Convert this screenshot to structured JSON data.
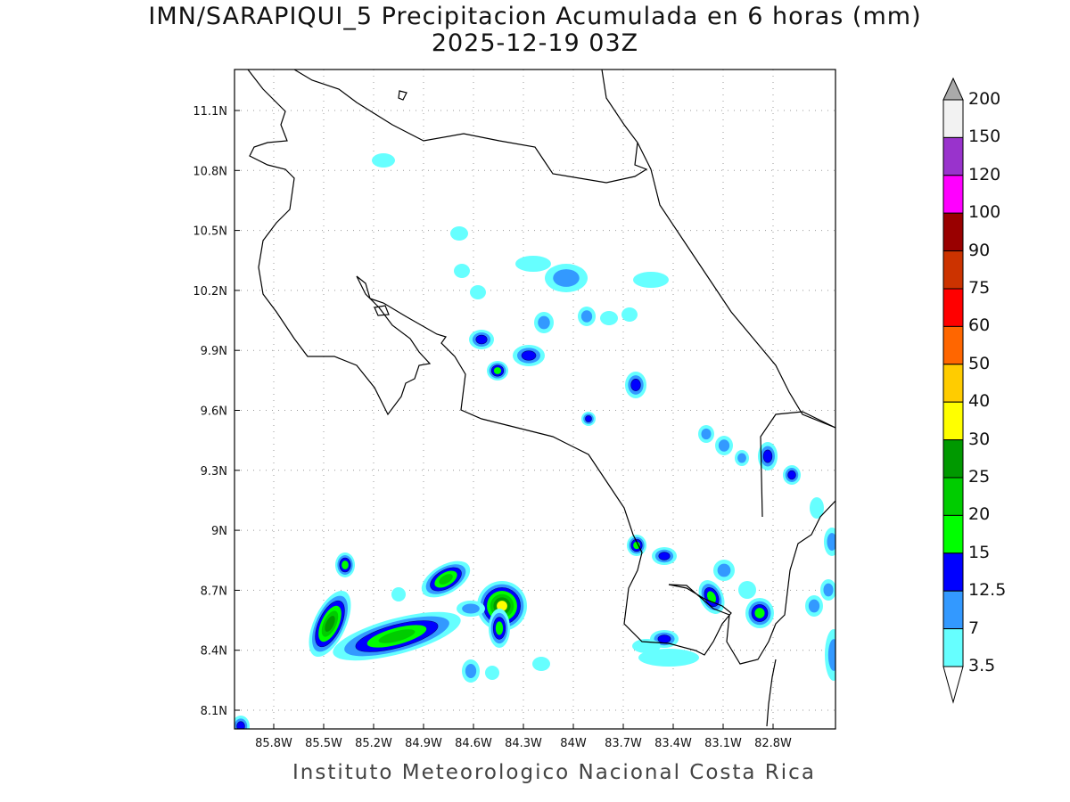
{
  "title": "IMN/SARAPIQUI_5 Precipitacion Acumulada en 6 horas (mm)",
  "subtitle": "2025-12-19 03Z",
  "footer": "Instituto Meteorologico Nacional Costa Rica",
  "axes": {
    "lon_ticks": [
      "85.8W",
      "85.5W",
      "85.2W",
      "84.9W",
      "84.6W",
      "84.3W",
      "84W",
      "83.7W",
      "83.4W",
      "83.1W",
      "82.8W"
    ],
    "lat_ticks": [
      "11.1N",
      "10.8N",
      "10.5N",
      "10.2N",
      "9.9N",
      "9.6N",
      "9.3N",
      "9N",
      "8.7N",
      "8.4N",
      "8.1N"
    ]
  },
  "colorbar": {
    "unit": "mm",
    "labels": [
      "3.5",
      "7",
      "12.5",
      "15",
      "20",
      "25",
      "30",
      "40",
      "50",
      "60",
      "75",
      "90",
      "100",
      "120",
      "150",
      "200"
    ],
    "colors": [
      "#66ffff",
      "#3399ff",
      "#0000ff",
      "#00ff00",
      "#00cc00",
      "#009900",
      "#ffff00",
      "#ffcc00",
      "#ff6600",
      "#ff0000",
      "#cc3300",
      "#990000",
      "#ff00ff",
      "#9933cc",
      "#f2f2f2"
    ],
    "over_color": "#aaaaaa",
    "under_color": "#ffffff"
  }
}
